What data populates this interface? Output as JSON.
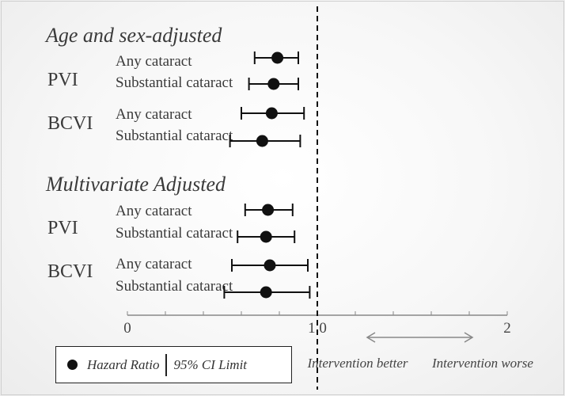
{
  "chart_data": {
    "type": "forest",
    "axis": {
      "min": 0,
      "max": 2,
      "reference": 1.0,
      "tick_labels": [
        "0",
        "1.0",
        "2"
      ]
    },
    "sections": [
      {
        "title": "Age and sex-adjusted",
        "groups": [
          {
            "label": "PVI",
            "rows": [
              {
                "label": "Any cataract",
                "hr": 0.79,
                "lo": 0.67,
                "hi": 0.9
              },
              {
                "label": "Substantial cataract",
                "hr": 0.77,
                "lo": 0.64,
                "hi": 0.9
              }
            ]
          },
          {
            "label": "BCVI",
            "rows": [
              {
                "label": "Any cataract",
                "hr": 0.76,
                "lo": 0.6,
                "hi": 0.93
              },
              {
                "label": "Substantial cataract",
                "hr": 0.71,
                "lo": 0.54,
                "hi": 0.91
              }
            ]
          }
        ]
      },
      {
        "title": "Multivariate Adjusted",
        "groups": [
          {
            "label": "PVI",
            "rows": [
              {
                "label": "Any cataract",
                "hr": 0.74,
                "lo": 0.62,
                "hi": 0.87
              },
              {
                "label": "Substantial cataract",
                "hr": 0.73,
                "lo": 0.58,
                "hi": 0.88
              }
            ]
          },
          {
            "label": "BCVI",
            "rows": [
              {
                "label": "Any cataract",
                "hr": 0.75,
                "lo": 0.55,
                "hi": 0.95
              },
              {
                "label": "Substantial cataract",
                "hr": 0.73,
                "lo": 0.51,
                "hi": 0.96
              }
            ]
          }
        ]
      }
    ],
    "annotations": {
      "better": "Intervention better",
      "worse": "Intervention worse"
    },
    "legend": {
      "point_label": "Hazard Ratio",
      "ci_label": "95% CI Limit"
    }
  }
}
